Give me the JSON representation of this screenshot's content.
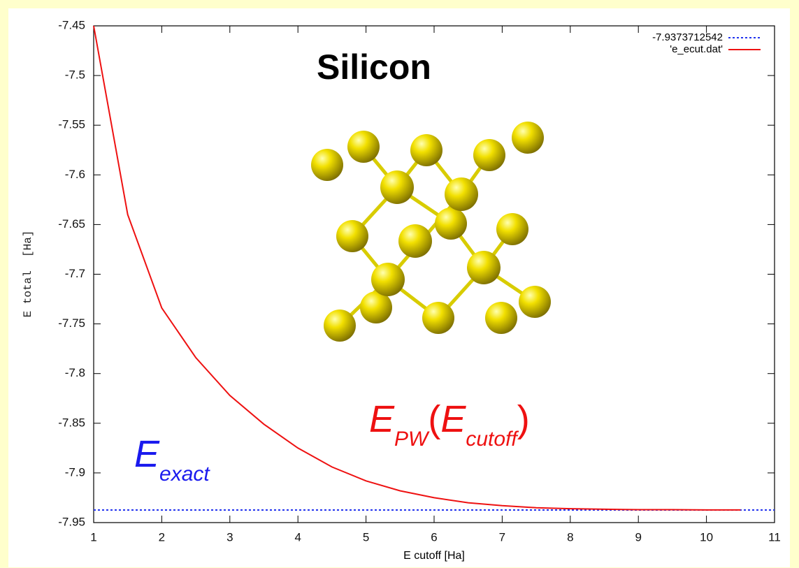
{
  "chart_data": {
    "type": "line",
    "title": "Silicon",
    "xlabel": "E cutoff  [Ha]",
    "ylabel": "E total  [Ha]",
    "xlim": [
      1,
      11
    ],
    "ylim": [
      -7.95,
      -7.45
    ],
    "xticks": [
      1,
      2,
      3,
      4,
      5,
      6,
      7,
      8,
      9,
      10,
      11
    ],
    "yticks": [
      -7.45,
      -7.5,
      -7.55,
      -7.6,
      -7.65,
      -7.7,
      -7.75,
      -7.8,
      -7.85,
      -7.9,
      -7.95
    ],
    "grid": false,
    "legend": "upper right",
    "series": [
      {
        "name": "-7.9373712542",
        "color": "#2233ee",
        "dashed": true,
        "x": [
          1,
          11
        ],
        "values": [
          -7.9373712542,
          -7.9373712542
        ]
      },
      {
        "name": "'e_ecut.dat'",
        "color": "#ee1111",
        "dashed": false,
        "x": [
          1,
          1.5,
          2,
          2.5,
          3,
          3.5,
          4,
          4.5,
          5,
          5.5,
          6,
          6.5,
          7,
          7.5,
          8,
          8.5,
          9,
          9.5,
          10,
          10.5
        ],
        "values": [
          -7.45,
          -7.64,
          -7.734,
          -7.784,
          -7.822,
          -7.851,
          -7.875,
          -7.894,
          -7.908,
          -7.918,
          -7.925,
          -7.93,
          -7.933,
          -7.935,
          -7.936,
          -7.9366,
          -7.937,
          -7.937,
          -7.9373,
          -7.9373
        ]
      }
    ],
    "annotations": [
      {
        "color": "#1a1aee",
        "parts": [
          {
            "text": "E"
          },
          {
            "text": "exact",
            "sub": true
          }
        ]
      },
      {
        "color": "#ee1111",
        "parts": [
          {
            "text": "E"
          },
          {
            "text": "PW",
            "sub": true
          },
          {
            "text": "("
          },
          {
            "text": "E"
          },
          {
            "text": "cutoff",
            "sub": true
          },
          {
            "text": ")"
          }
        ]
      }
    ]
  }
}
